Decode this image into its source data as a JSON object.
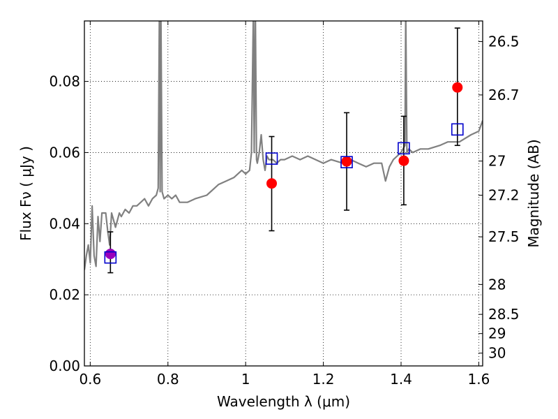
{
  "chart_data": {
    "type": "scatter",
    "xlabel": "Wavelength  λ (μm)",
    "ylabel": "Flux  Fν  ( μJy )",
    "ylabel_right": "Magnitude (AB)",
    "xlim": [
      0.585,
      1.61
    ],
    "ylim": [
      0.0,
      0.097
    ],
    "grid": true,
    "x_ticks": [
      0.6,
      0.8,
      1.0,
      1.2,
      1.4,
      1.6
    ],
    "x_tick_labels": [
      "0.6",
      "0.8",
      "1",
      "1.2",
      "1.4",
      "1.6"
    ],
    "y_ticks": [
      0.0,
      0.02,
      0.04,
      0.06,
      0.08
    ],
    "y_tick_labels": [
      "0.00",
      "0.02",
      "0.04",
      "0.06",
      "0.08"
    ],
    "right_ticks": [
      {
        "label": "26.5",
        "flux": 0.0912
      },
      {
        "label": "26.7",
        "flux": 0.0762
      },
      {
        "label": "27",
        "flux": 0.0576
      },
      {
        "label": "27.2",
        "flux": 0.048
      },
      {
        "label": "27.5",
        "flux": 0.0363
      },
      {
        "label": "28",
        "flux": 0.0229
      },
      {
        "label": "28.5",
        "flux": 0.0145
      },
      {
        "label": "29",
        "flux": 0.0091
      },
      {
        "label": "30",
        "flux": 0.0036
      }
    ],
    "series": [
      {
        "style": "line",
        "color": "#808080",
        "x": [
          0.585,
          0.59,
          0.595,
          0.6,
          0.605,
          0.61,
          0.615,
          0.62,
          0.625,
          0.63,
          0.64,
          0.645,
          0.65,
          0.655,
          0.66,
          0.665,
          0.67,
          0.675,
          0.68,
          0.69,
          0.7,
          0.71,
          0.72,
          0.73,
          0.74,
          0.75,
          0.76,
          0.77,
          0.775,
          0.778,
          0.78,
          0.782,
          0.785,
          0.79,
          0.8,
          0.81,
          0.82,
          0.83,
          0.85,
          0.87,
          0.9,
          0.93,
          0.95,
          0.97,
          0.99,
          1.0,
          1.01,
          1.015,
          1.02,
          1.022,
          1.025,
          1.028,
          1.03,
          1.035,
          1.04,
          1.045,
          1.05,
          1.055,
          1.06,
          1.07,
          1.08,
          1.09,
          1.1,
          1.12,
          1.14,
          1.16,
          1.18,
          1.2,
          1.22,
          1.25,
          1.27,
          1.29,
          1.31,
          1.33,
          1.35,
          1.36,
          1.37,
          1.38,
          1.39,
          1.4,
          1.41,
          1.412,
          1.415,
          1.42,
          1.43,
          1.45,
          1.47,
          1.5,
          1.52,
          1.55,
          1.58,
          1.6,
          1.61
        ],
        "y": [
          0.027,
          0.031,
          0.034,
          0.029,
          0.045,
          0.031,
          0.028,
          0.042,
          0.035,
          0.043,
          0.043,
          0.038,
          0.034,
          0.043,
          0.041,
          0.039,
          0.041,
          0.043,
          0.042,
          0.044,
          0.043,
          0.045,
          0.045,
          0.046,
          0.047,
          0.045,
          0.047,
          0.048,
          0.05,
          0.1,
          0.049,
          0.1,
          0.049,
          0.047,
          0.048,
          0.047,
          0.048,
          0.046,
          0.046,
          0.047,
          0.048,
          0.051,
          0.052,
          0.053,
          0.055,
          0.054,
          0.055,
          0.06,
          0.1,
          0.06,
          0.1,
          0.058,
          0.057,
          0.06,
          0.065,
          0.058,
          0.055,
          0.059,
          0.058,
          0.058,
          0.057,
          0.058,
          0.058,
          0.059,
          0.058,
          0.059,
          0.058,
          0.057,
          0.058,
          0.057,
          0.058,
          0.057,
          0.056,
          0.057,
          0.057,
          0.052,
          0.056,
          0.058,
          0.059,
          0.06,
          0.062,
          0.1,
          0.06,
          0.061,
          0.06,
          0.061,
          0.061,
          0.062,
          0.063,
          0.063,
          0.065,
          0.066,
          0.069
        ]
      },
      {
        "style": "errorbar",
        "color": "#000000",
        "x": [
          0.652,
          1.067,
          1.26,
          1.407,
          1.545
        ],
        "y": [
          0.0315,
          0.0513,
          0.0575,
          0.0577,
          0.0783
        ],
        "y_low": [
          0.0262,
          0.038,
          0.0438,
          0.0453,
          0.062
        ],
        "y_high": [
          0.0377,
          0.0645,
          0.0712,
          0.0702,
          0.095
        ]
      },
      {
        "style": "markers-circle",
        "colors": [
          "#9900bb",
          "#ff0000",
          "#ff0000",
          "#ff0000",
          "#ff0000"
        ],
        "x": [
          0.652,
          1.067,
          1.26,
          1.407,
          1.545
        ],
        "y": [
          0.0315,
          0.0513,
          0.0575,
          0.0577,
          0.0783
        ]
      },
      {
        "style": "markers-square",
        "color": "#0000cc",
        "x": [
          0.652,
          1.067,
          1.26,
          1.407,
          1.545
        ],
        "y": [
          0.0305,
          0.0583,
          0.0573,
          0.0612,
          0.0665
        ]
      }
    ]
  }
}
